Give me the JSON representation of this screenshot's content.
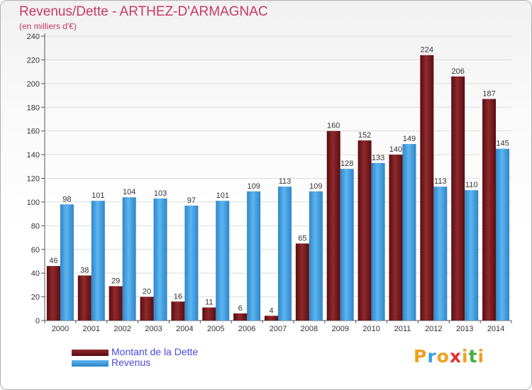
{
  "title": "Revenus/Dette - ARTHEZ-D'ARMAGNAC",
  "subtitle": "(en milliers d'€)",
  "chart_data": {
    "type": "bar",
    "categories": [
      "2000",
      "2001",
      "2002",
      "2003",
      "2004",
      "2005",
      "2006",
      "2007",
      "2008",
      "2009",
      "2010",
      "2011",
      "2012",
      "2013",
      "2014"
    ],
    "series": [
      {
        "name": "Montant de la Dette",
        "color": "#7a1a1d",
        "values": [
          46,
          38,
          29,
          20,
          16,
          11,
          6,
          4,
          65,
          160,
          152,
          140,
          224,
          206,
          187
        ]
      },
      {
        "name": "Revenus",
        "color": "#4aa3e6",
        "values": [
          98,
          101,
          104,
          103,
          97,
          101,
          109,
          113,
          109,
          128,
          133,
          149,
          113,
          110,
          145
        ]
      }
    ],
    "ylim": [
      0,
      240
    ],
    "yticks": [
      0,
      20,
      40,
      60,
      80,
      100,
      120,
      140,
      160,
      180,
      200,
      220,
      240
    ],
    "grid": true,
    "legend_position": "bottom-left"
  },
  "legend": {
    "items": [
      {
        "label": "Montant de la Dette",
        "color": "#7a1a1d"
      },
      {
        "label": "Revenus",
        "color": "#4aa3e6"
      }
    ]
  },
  "logo": {
    "letters": [
      "P",
      "r",
      "o",
      "x",
      "i",
      "t",
      "i"
    ],
    "colors": [
      "#f0a020",
      "#3aa0e0",
      "#f0a020",
      "#e03030",
      "#f0a020",
      "#40b040",
      "#f0a020"
    ]
  }
}
